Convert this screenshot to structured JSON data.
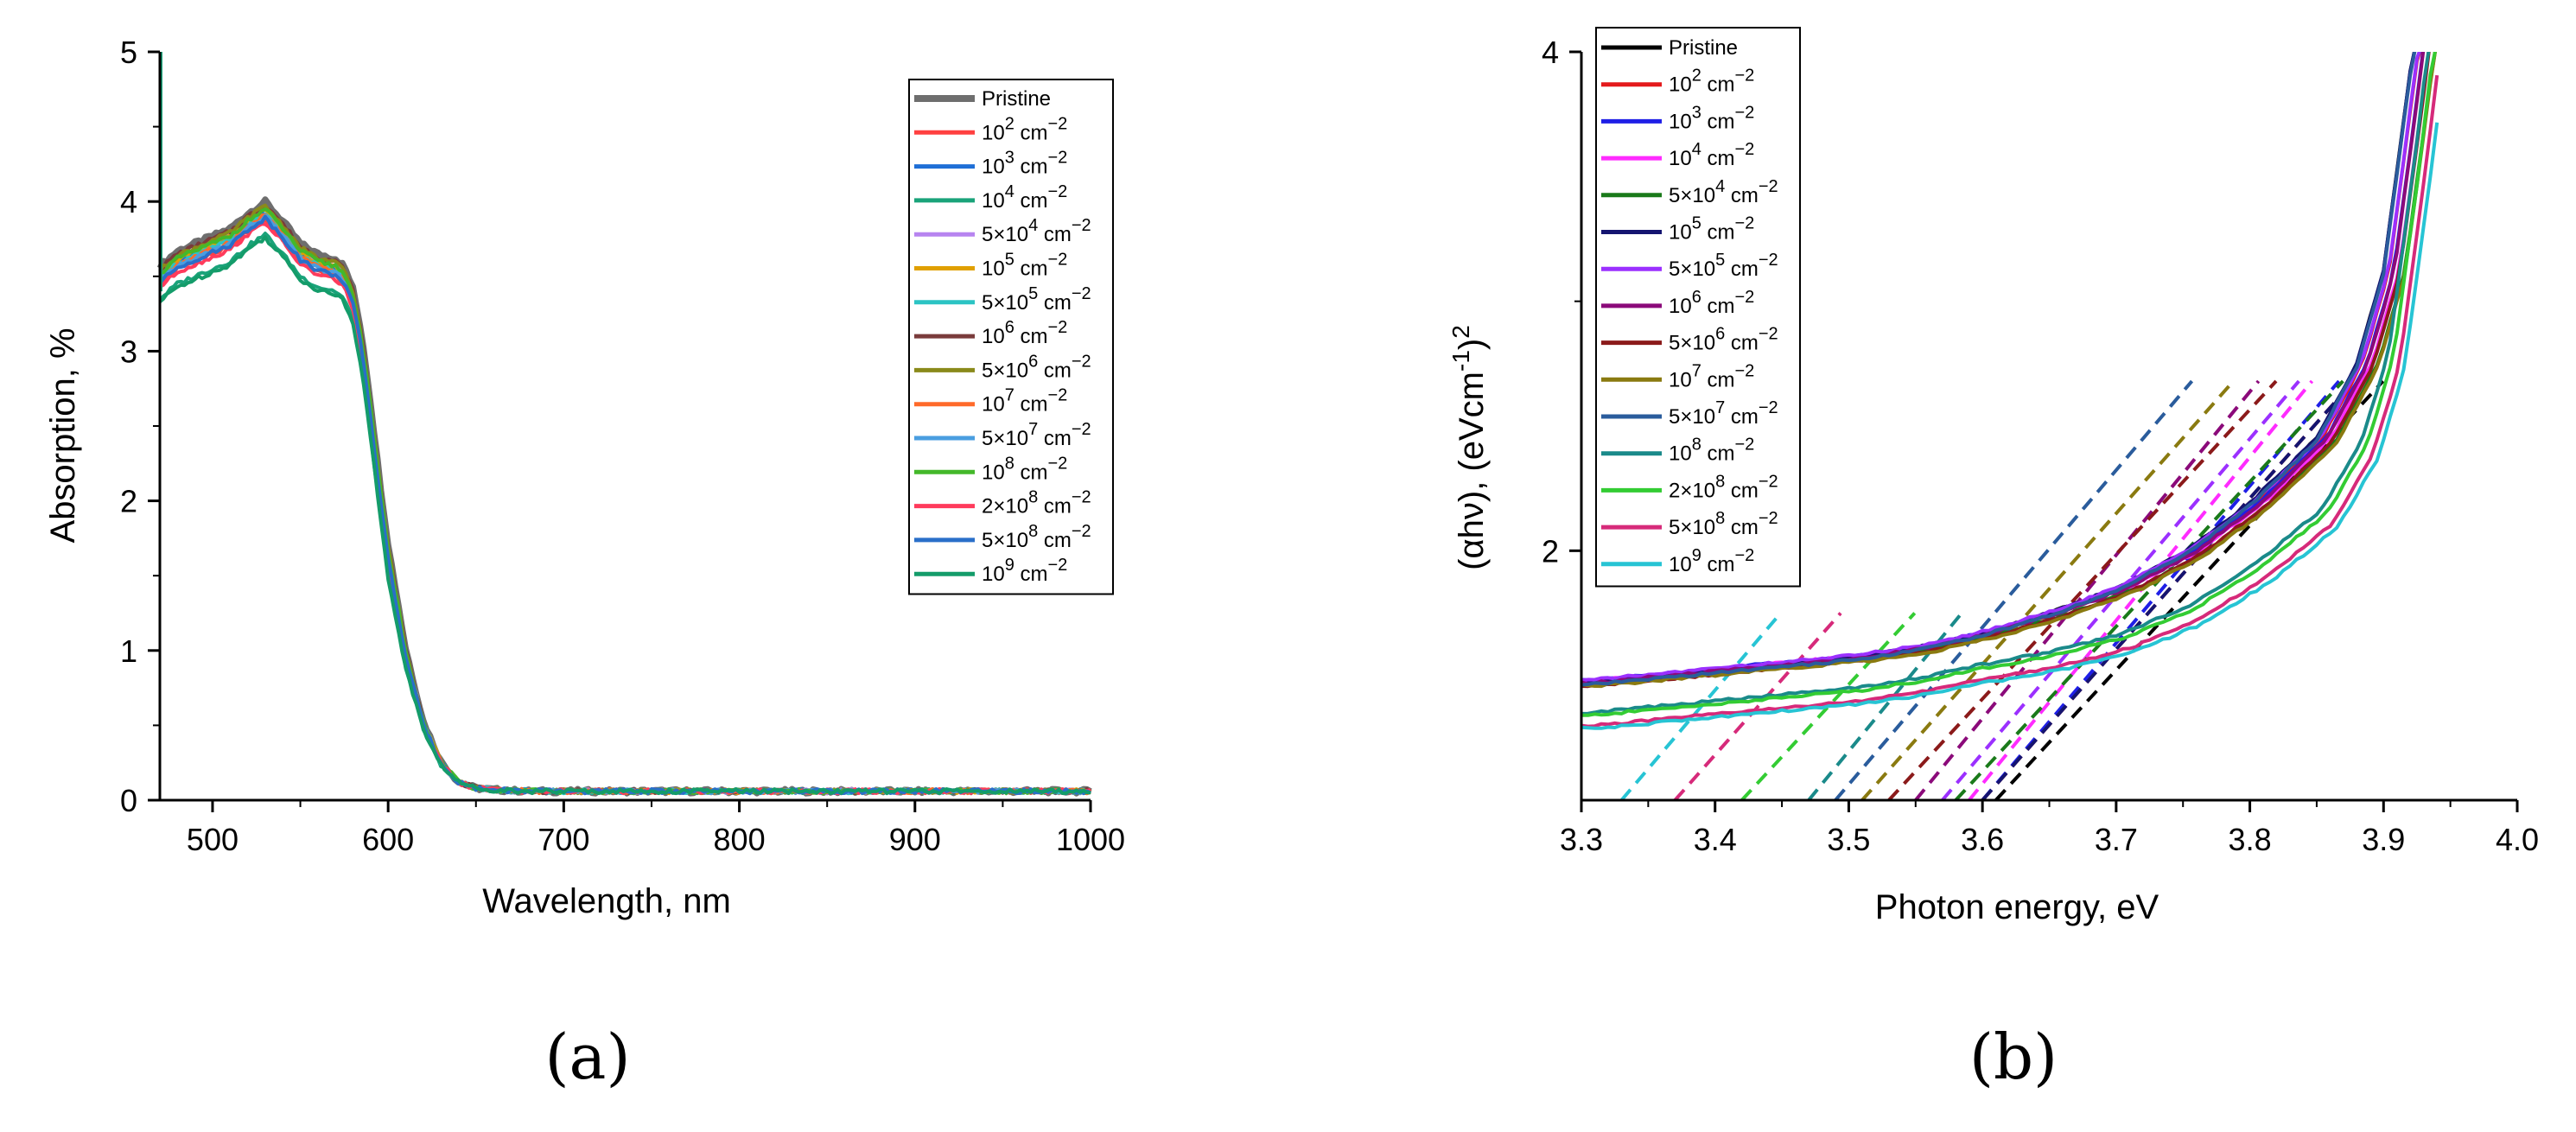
{
  "figure": {
    "panel_labels": [
      "(a)",
      "(b)"
    ]
  },
  "chart_data": [
    {
      "type": "line",
      "panel": "a",
      "xlabel": "Wavelength, nm",
      "ylabel": "Absorption, %",
      "xlim": [
        470,
        1000
      ],
      "ylim": [
        0,
        5
      ],
      "xticks": [
        500,
        600,
        700,
        800,
        900,
        1000
      ],
      "yticks": [
        0,
        1,
        2,
        3,
        4,
        5
      ],
      "grid": false,
      "legend_position": "top-right",
      "series": [
        {
          "name": "Pristine",
          "base": "",
          "exp": "",
          "unit": "",
          "color": "#6e6e6e",
          "offset": 0.12,
          "width": 7
        },
        {
          "name": "10² cm⁻²",
          "base": "10",
          "exp": "2",
          "unit": " cm",
          "color": "#ff4040",
          "offset": 0.0,
          "width": 4
        },
        {
          "name": "10³ cm⁻²",
          "base": "10",
          "exp": "3",
          "unit": " cm",
          "color": "#1f6fd6",
          "offset": 0.05,
          "width": 4
        },
        {
          "name": "10⁴ cm⁻²",
          "base": "10",
          "exp": "4",
          "unit": " cm",
          "color": "#1aa37a",
          "offset": -0.1,
          "width": 4
        },
        {
          "name": "5×10⁴ cm⁻²",
          "base": "5×10",
          "exp": "4",
          "unit": " cm",
          "color": "#b784f0",
          "offset": 0.08,
          "width": 4
        },
        {
          "name": "10⁵ cm⁻²",
          "base": "10",
          "exp": "5",
          "unit": " cm",
          "color": "#e0a000",
          "offset": 0.06,
          "width": 4
        },
        {
          "name": "5×10⁵ cm⁻²",
          "base": "5×10",
          "exp": "5",
          "unit": " cm",
          "color": "#2cc4c4",
          "offset": 0.04,
          "width": 4
        },
        {
          "name": "10⁶ cm⁻²",
          "base": "10",
          "exp": "6",
          "unit": " cm",
          "color": "#7a3b3b",
          "offset": 0.1,
          "width": 4
        },
        {
          "name": "5×10⁶ cm⁻²",
          "base": "5×10",
          "exp": "6",
          "unit": " cm",
          "color": "#8a8a1a",
          "offset": 0.09,
          "width": 4
        },
        {
          "name": "10⁷ cm⁻²",
          "base": "10",
          "exp": "7",
          "unit": " cm",
          "color": "#ff6a2a",
          "offset": 0.03,
          "width": 4
        },
        {
          "name": "5×10⁷ cm⁻²",
          "base": "5×10",
          "exp": "7",
          "unit": " cm",
          "color": "#4a9ee0",
          "offset": 0.02,
          "width": 4
        },
        {
          "name": "10⁸ cm⁻²",
          "base": "10",
          "exp": "8",
          "unit": " cm",
          "color": "#44b82a",
          "offset": 0.07,
          "width": 4
        },
        {
          "name": "2×10⁸ cm⁻²",
          "base": "2×10",
          "exp": "8",
          "unit": " cm",
          "color": "#ff3b5c",
          "offset": -0.02,
          "width": 4
        },
        {
          "name": "5×10⁸ cm⁻²",
          "base": "5×10",
          "exp": "8",
          "unit": " cm",
          "color": "#2a6fc9",
          "offset": 0.01,
          "width": 4
        },
        {
          "name": "10⁹ cm⁻²",
          "base": "10",
          "exp": "9",
          "unit": " cm",
          "color": "#149c6a",
          "offset": -0.12,
          "width": 4
        }
      ],
      "profile": {
        "x": [
          470,
          480,
          490,
          500,
          510,
          520,
          530,
          540,
          550,
          560,
          570,
          575,
          580,
          585,
          590,
          595,
          600,
          610,
          620,
          630,
          640,
          650,
          660,
          670,
          680,
          700,
          750,
          800,
          900,
          1000
        ],
        "y": [
          3.45,
          3.55,
          3.6,
          3.65,
          3.7,
          3.8,
          3.88,
          3.75,
          3.6,
          3.53,
          3.5,
          3.45,
          3.3,
          3.0,
          2.55,
          2.05,
          1.6,
          0.95,
          0.5,
          0.25,
          0.12,
          0.08,
          0.07,
          0.065,
          0.06,
          0.06,
          0.06,
          0.06,
          0.06,
          0.06
        ]
      }
    },
    {
      "type": "line",
      "panel": "b",
      "xlabel": "Photon energy, eV",
      "ylabel": "(αhν), (eVcm⁻¹)²",
      "ylabel_parts": {
        "prefix": "(αhν), (eVcm",
        "exp1": "-1",
        "mid": ")",
        "exp2": "2"
      },
      "xlim": [
        3.3,
        4.0
      ],
      "ylim": [
        1.0,
        4.0
      ],
      "xticks": [
        "3.3",
        "3.4",
        "3.5",
        "3.6",
        "3.7",
        "3.8",
        "3.9",
        "4.0"
      ],
      "yticks": [
        "2",
        "4"
      ],
      "grid": false,
      "legend_position": "top-left",
      "series": [
        {
          "name": "Pristine",
          "base": "",
          "exp": "",
          "unit": "",
          "color": "#000000",
          "start": 1.47,
          "fit_x0": 3.61
        },
        {
          "name": "10² cm⁻²",
          "base": "10",
          "exp": "2",
          "unit": " cm",
          "color": "#e41a1c",
          "start": 1.47,
          "fit_x0": 3.6
        },
        {
          "name": "10³ cm⁻²",
          "base": "10",
          "exp": "3",
          "unit": " cm",
          "color": "#1f1fe6",
          "start": 1.48,
          "fit_x0": 3.6
        },
        {
          "name": "10⁴ cm⁻²",
          "base": "10",
          "exp": "4",
          "unit": " cm",
          "color": "#ff2bff",
          "start": 1.48,
          "fit_x0": 3.59
        },
        {
          "name": "5×10⁴ cm⁻²",
          "base": "5×10",
          "exp": "4",
          "unit": " cm",
          "color": "#1a7a1a",
          "start": 1.47,
          "fit_x0": 3.58
        },
        {
          "name": "10⁵ cm⁻²",
          "base": "10",
          "exp": "5",
          "unit": " cm",
          "color": "#141470",
          "start": 1.47,
          "fit_x0": 3.6
        },
        {
          "name": "5×10⁵ cm⁻²",
          "base": "5×10",
          "exp": "5",
          "unit": " cm",
          "color": "#9b30ff",
          "start": 1.48,
          "fit_x0": 3.57
        },
        {
          "name": "10⁶ cm⁻²",
          "base": "10",
          "exp": "6",
          "unit": " cm",
          "color": "#8b0a7a",
          "start": 1.47,
          "fit_x0": 3.55
        },
        {
          "name": "5×10⁶ cm⁻²",
          "base": "5×10",
          "exp": "6",
          "unit": " cm",
          "color": "#8b1a1a",
          "start": 1.46,
          "fit_x0": 3.53
        },
        {
          "name": "10⁷ cm⁻²",
          "base": "10",
          "exp": "7",
          "unit": " cm",
          "color": "#8a7a10",
          "start": 1.46,
          "fit_x0": 3.51
        },
        {
          "name": "5×10⁷ cm⁻²",
          "base": "5×10",
          "exp": "7",
          "unit": " cm",
          "color": "#2a5c9c",
          "start": 1.46,
          "fit_x0": 3.49
        },
        {
          "name": "10⁸ cm⁻²",
          "base": "10",
          "exp": "8",
          "unit": " cm",
          "color": "#1a8a8a",
          "start": 1.35,
          "fit_x0": 3.47
        },
        {
          "name": "2×10⁸ cm⁻²",
          "base": "2×10",
          "exp": "8",
          "unit": " cm",
          "color": "#33cc33",
          "start": 1.34,
          "fit_x0": 3.42
        },
        {
          "name": "5×10⁸ cm⁻²",
          "base": "5×10",
          "exp": "8",
          "unit": " cm",
          "color": "#d62a7a",
          "start": 1.3,
          "fit_x0": 3.37
        },
        {
          "name": "10⁹ cm⁻²",
          "base": "10",
          "exp": "9",
          "unit": " cm",
          "color": "#27c4d4",
          "start": 1.29,
          "fit_x0": 3.33
        }
      ],
      "profile": {
        "x": [
          3.3,
          3.4,
          3.5,
          3.55,
          3.6,
          3.65,
          3.7,
          3.75,
          3.8,
          3.85,
          3.88,
          3.9,
          3.91,
          3.92,
          3.93
        ],
        "dy": [
          0.0,
          0.05,
          0.1,
          0.14,
          0.2,
          0.28,
          0.38,
          0.52,
          0.72,
          0.98,
          1.28,
          1.65,
          2.05,
          2.45,
          2.9
        ]
      }
    }
  ]
}
